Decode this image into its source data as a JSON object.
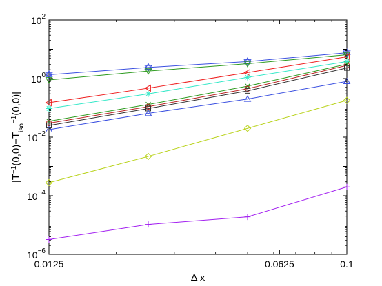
{
  "chart_data": {
    "type": "line",
    "xlabel": "Δ x",
    "ylabel_parts": {
      "open": "|T",
      "sup1": "−1",
      "mid1": "(0,0)−T",
      "sub": "iso",
      "sup2": "−1",
      "close": "(0,0)|"
    },
    "xscale": "log",
    "yscale": "log",
    "xlim": [
      0.0125,
      0.1
    ],
    "ylim": [
      1e-06,
      100
    ],
    "grid": false,
    "x_ticks": [
      {
        "value": 0.0125,
        "label": "0.0125"
      },
      {
        "value": 0.0625,
        "label": "0.0625"
      },
      {
        "value": 0.1,
        "label": "0.1"
      }
    ],
    "y_ticks": [
      {
        "value": 1e-06,
        "base": "10",
        "exp": "−6"
      },
      {
        "value": 0.0001,
        "base": "10",
        "exp": "−4"
      },
      {
        "value": 0.01,
        "base": "10",
        "exp": "−2"
      },
      {
        "value": 1,
        "base": "10",
        "exp": "0"
      },
      {
        "value": 100,
        "base": "10",
        "exp": "2"
      }
    ],
    "x": [
      0.0125,
      0.025,
      0.05,
      0.1
    ],
    "series": [
      {
        "marker": "hexagram",
        "color": "#3a4fe0",
        "values": [
          1.35,
          2.4,
          3.8,
          7.6
        ]
      },
      {
        "marker": "triangle-down",
        "color": "#2c9a1e",
        "values": [
          0.9,
          1.8,
          3.2,
          6.5
        ]
      },
      {
        "marker": "triangle-left",
        "color": "#ee1c1c",
        "values": [
          0.15,
          0.47,
          1.6,
          5.5
        ]
      },
      {
        "marker": "asterisk",
        "color": "#33e8c8",
        "values": [
          0.095,
          0.3,
          1.1,
          3.8
        ]
      },
      {
        "marker": "x",
        "color": "#2c9a1e",
        "values": [
          0.035,
          0.13,
          0.55,
          3.1
        ]
      },
      {
        "marker": "circle",
        "color": "#b82020",
        "values": [
          0.03,
          0.11,
          0.45,
          2.8
        ]
      },
      {
        "marker": "square",
        "color": "#333333",
        "values": [
          0.025,
          0.095,
          0.38,
          2.3
        ]
      },
      {
        "marker": "triangle-up",
        "color": "#3a4fe0",
        "values": [
          0.018,
          0.065,
          0.2,
          0.8
        ]
      },
      {
        "marker": "diamond",
        "color": "#b8d218",
        "values": [
          0.00028,
          0.0022,
          0.02,
          0.18
        ]
      },
      {
        "marker": "plus",
        "color": "#a21ff0",
        "values": [
          3.2e-06,
          1.05e-05,
          1.9e-05,
          0.0002
        ]
      }
    ]
  }
}
